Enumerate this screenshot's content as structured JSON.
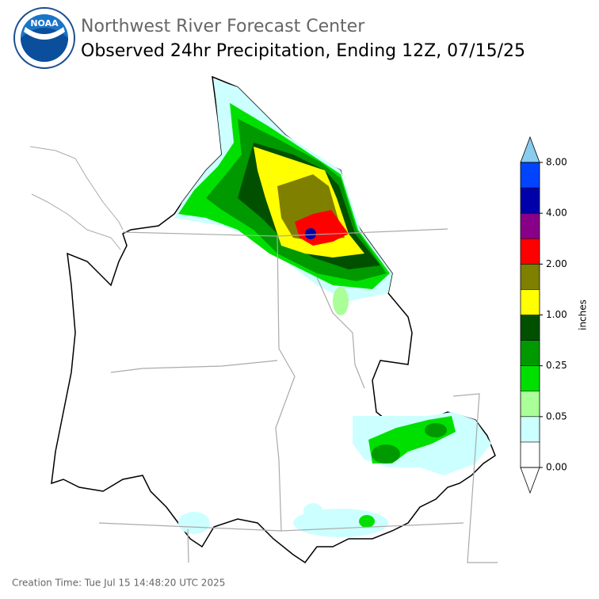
{
  "header": {
    "logo_text": "NOAA",
    "title": "Northwest River Forecast Center",
    "subtitle": "Observed 24hr Precipitation, Ending 12Z, 07/15/25"
  },
  "colorbar": {
    "label": "inches",
    "colors": [
      "#ffffff",
      "#ccffff",
      "#aaff99",
      "#00e000",
      "#009900",
      "#005000",
      "#ffff00",
      "#808000",
      "#ff0000",
      "#880088",
      "#0000aa",
      "#0044ff"
    ],
    "over_color": "#88ccee",
    "ticks": [
      {
        "value": 0,
        "label": "0.00"
      },
      {
        "value": 0.05,
        "label": "0.05"
      },
      {
        "value": 0.25,
        "label": "0.25"
      },
      {
        "value": 1,
        "label": "1.00"
      },
      {
        "value": 2,
        "label": "2.00"
      },
      {
        "value": 4,
        "label": "4.00"
      },
      {
        "value": 8,
        "label": "8.00"
      }
    ]
  },
  "footer": {
    "creation_time": "Creation Time: Tue Jul 15 14:48:20 UTC 2025"
  }
}
